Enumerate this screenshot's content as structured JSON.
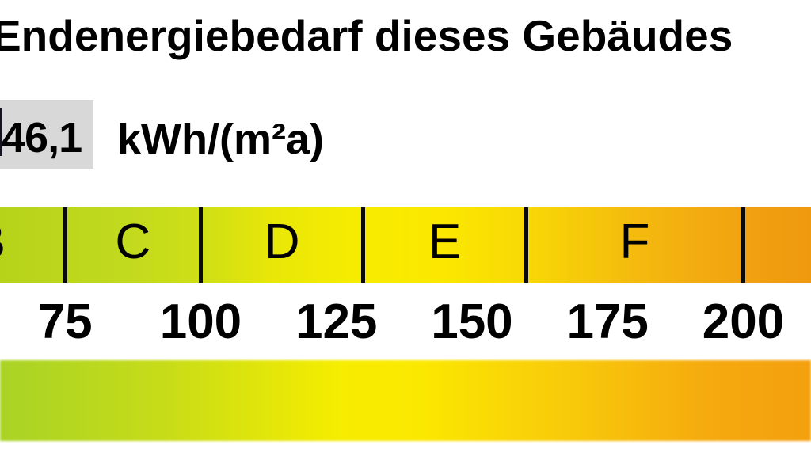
{
  "header": {
    "title": "Endenergiebedarf dieses Gebäudes"
  },
  "reading": {
    "value": "46,1",
    "unit": "kWh/(m²a)",
    "value_box_color": "#d8d8d8"
  },
  "scale": {
    "classes": [
      {
        "label": "B",
        "center_value": 61
      },
      {
        "label": "C",
        "center_value": 87.5
      },
      {
        "label": "D",
        "center_value": 115
      },
      {
        "label": "E",
        "center_value": 145
      },
      {
        "label": "F",
        "center_value": 180
      }
    ],
    "class_boundaries": [
      75,
      100,
      130,
      160,
      200
    ],
    "ticks": [
      {
        "label": "75",
        "value": 75
      },
      {
        "label": "100",
        "value": 100
      },
      {
        "label": "125",
        "value": 125
      },
      {
        "label": "150",
        "value": 150
      },
      {
        "label": "175",
        "value": 175
      },
      {
        "label": "200",
        "value": 200
      }
    ],
    "upper_band_gradient": [
      {
        "color": "#b6d31a",
        "pos": 0
      },
      {
        "color": "#c2da1e",
        "pos": 16
      },
      {
        "color": "#cfdf15",
        "pos": 25
      },
      {
        "color": "#e9e707",
        "pos": 34
      },
      {
        "color": "#f7ec00",
        "pos": 44
      },
      {
        "color": "#fbe700",
        "pos": 55
      },
      {
        "color": "#f8d806",
        "pos": 65
      },
      {
        "color": "#f4bb0e",
        "pos": 78
      },
      {
        "color": "#f1a111",
        "pos": 92
      },
      {
        "color": "#f0990f",
        "pos": 100
      }
    ],
    "lower_band_gradient": [
      {
        "color": "#a9d326",
        "pos": 0
      },
      {
        "color": "#c6dc18",
        "pos": 20
      },
      {
        "color": "#f6ed00",
        "pos": 42
      },
      {
        "color": "#fbe800",
        "pos": 52
      },
      {
        "color": "#f8ca0a",
        "pos": 70
      },
      {
        "color": "#f5a90e",
        "pos": 88
      },
      {
        "color": "#f4a00e",
        "pos": 100
      }
    ]
  },
  "chart_data": {
    "type": "heatmap",
    "subtype": "energy-efficiency-color-band-scale",
    "title": "Endenergiebedarf dieses Gebäudes",
    "highlight_value": 46.1,
    "unit": "kWh/(m²a)",
    "visible_value_range": [
      63,
      213
    ],
    "axis_tick_values": [
      75,
      100,
      125,
      150,
      175,
      200
    ],
    "efficiency_classes_visible": [
      {
        "label": "B",
        "to": 75
      },
      {
        "label": "C",
        "from": 75,
        "to": 100
      },
      {
        "label": "D",
        "from": 100,
        "to": 130
      },
      {
        "label": "E",
        "from": 130,
        "to": 160
      },
      {
        "label": "F",
        "from": 160,
        "to": 200
      }
    ],
    "bands": 2,
    "color_scale": {
      "left": "#b6d31a",
      "middle": "#fbe900",
      "right": "#f0990f"
    },
    "grid": false,
    "legend_position": "none"
  }
}
